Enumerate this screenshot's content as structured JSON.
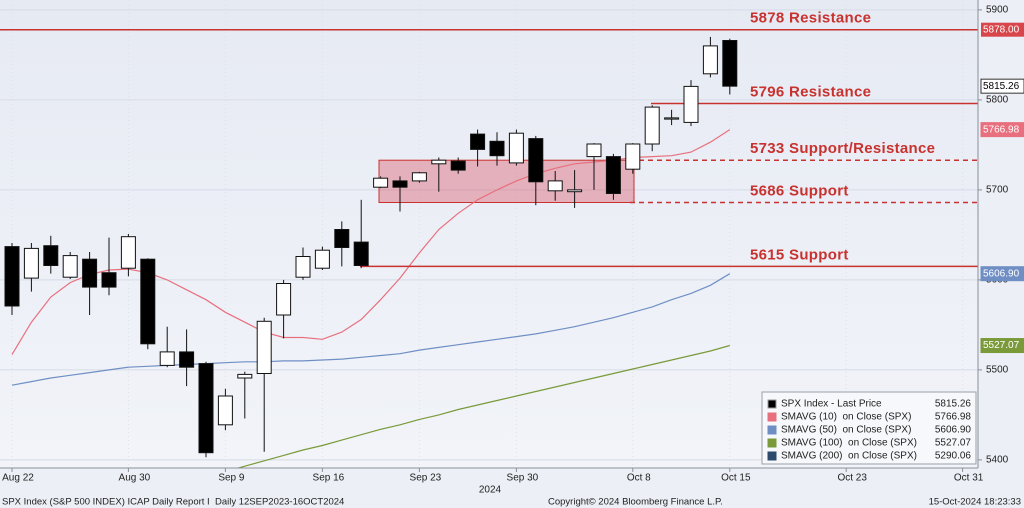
{
  "chart_data": {
    "type": "candlestick",
    "categories": [
      "Aug 22",
      null,
      null,
      null,
      null,
      null,
      "Aug 30",
      null,
      null,
      null,
      null,
      "Sep 9",
      null,
      null,
      null,
      null,
      "Sep 16",
      null,
      null,
      null,
      null,
      "Sep 23",
      null,
      null,
      null,
      null,
      "Sep 30",
      null,
      null,
      null,
      null,
      null,
      "Oct 8",
      null,
      null,
      null,
      null,
      "Oct 15",
      null,
      null,
      null,
      null,
      null,
      "Oct 23",
      null,
      null,
      null,
      null,
      null,
      "Oct 31"
    ],
    "x_sublabel": "2024",
    "ylim": [
      5391,
      5911
    ],
    "yticks": [
      5400,
      5500,
      5600,
      5700,
      5800,
      5900
    ],
    "grid": true,
    "series": [
      {
        "name": "SPX Index - Last Price",
        "color": "#000000",
        "open": [
          5637,
          5602,
          5638,
          5603,
          5623,
          5608,
          5613,
          5623,
          5505,
          5520,
          5507,
          5439,
          5491,
          5496,
          5561,
          5603,
          5613,
          5656,
          5642,
          5703,
          5710,
          5710,
          5729,
          5732,
          5762,
          5754,
          5730,
          5757,
          5699,
          5698,
          5737,
          5737,
          5723,
          5751,
          5779,
          5775,
          5829,
          5866,
          null,
          null,
          null,
          null,
          null,
          null,
          null,
          null,
          null,
          null,
          null,
          null
        ],
        "high": [
          5641,
          5641,
          5649,
          5631,
          5631,
          5647,
          5651,
          5624,
          5548,
          5545,
          5509,
          5479,
          5498,
          5558,
          5600,
          5636,
          5637,
          5665,
          5689,
          5715,
          5715,
          5720,
          5736,
          5736,
          5767,
          5764,
          5767,
          5760,
          5721,
          5722,
          5752,
          5740,
          5752,
          5794,
          5789,
          5822,
          5870,
          5868,
          null,
          null,
          null,
          null,
          null,
          null,
          null,
          null,
          null,
          null,
          null,
          null
        ],
        "low": [
          5561,
          5587,
          5607,
          5601,
          5561,
          5583,
          5604,
          5523,
          5503,
          5482,
          5403,
          5433,
          5446,
          5409,
          5535,
          5600,
          5611,
          5615,
          5613,
          5702,
          5676,
          5708,
          5698,
          5718,
          5726,
          5727,
          5727,
          5683,
          5688,
          5680,
          5700,
          5689,
          5718,
          5743,
          5772,
          5771,
          5825,
          5806,
          null,
          null,
          null,
          null,
          null,
          null,
          null,
          null,
          null,
          null,
          null,
          null
        ],
        "close": [
          5571,
          5635,
          5616,
          5627,
          5592,
          5592,
          5648,
          5529,
          5520,
          5503,
          5408,
          5471,
          5495,
          5554,
          5596,
          5626,
          5633,
          5636,
          5616,
          5713,
          5703,
          5719,
          5733,
          5722,
          5745,
          5738,
          5763,
          5709,
          5710,
          5700,
          5751,
          5696,
          5751,
          5792,
          5780,
          5815,
          5860,
          5815.26,
          null,
          null,
          null,
          null,
          null,
          null,
          null,
          null,
          null,
          null,
          null,
          null
        ]
      },
      {
        "name": "SMAVG (10)  on Close (SPX)",
        "color": "#e8707e",
        "values": [
          5517,
          5553,
          5581,
          5597,
          5606,
          5611,
          5612,
          5608,
          5600,
          5589,
          5578,
          5564,
          5553,
          5542,
          5536,
          5536,
          5534,
          5542,
          5556,
          5578,
          5602,
          5630,
          5656,
          5674,
          5689,
          5700,
          5710,
          5718,
          5724,
          5729,
          5731,
          5733,
          5736,
          5737,
          5738,
          5742,
          5753,
          5766.98,
          null,
          null,
          null,
          null,
          null,
          null,
          null,
          null,
          null,
          null,
          null,
          null
        ]
      },
      {
        "name": "SMAVG (50)  on Close (SPX)",
        "color": "#6f8fc4",
        "last_label": "5606.90",
        "values": [
          5483,
          5487,
          5491,
          5494,
          5497,
          5500,
          5503,
          5504,
          5505,
          5506,
          5507,
          5508,
          5509,
          5509,
          5510,
          5510,
          5511,
          5512,
          5514,
          5516,
          5518,
          5522,
          5525,
          5528,
          5531,
          5534,
          5537,
          5540,
          5544,
          5548,
          5553,
          5558,
          5564,
          5570,
          5578,
          5585,
          5594,
          5606.9,
          null,
          null,
          null,
          null,
          null,
          null,
          null,
          null,
          null,
          null,
          null,
          null
        ]
      },
      {
        "name": "SMAVG (100)  on Close (SPX)",
        "color": "#7a9a3a",
        "values": [
          null,
          null,
          null,
          null,
          null,
          null,
          null,
          null,
          null,
          null,
          null,
          5387,
          5393,
          5399,
          5405,
          5411,
          5416,
          5422,
          5428,
          5434,
          5439,
          5445,
          5450,
          5456,
          5461,
          5466,
          5471,
          5476,
          5481,
          5486,
          5491,
          5496,
          5501,
          5506,
          5511,
          5516,
          5521,
          5527.07,
          null,
          null,
          null,
          null,
          null,
          null,
          null,
          null,
          null,
          null,
          null,
          null
        ]
      },
      {
        "name": "SMAVG (200)  on Close (SPX)",
        "color": "#2c4a6e",
        "last_value": 5290.06
      }
    ],
    "levels": [
      {
        "value": 5878,
        "label": "5878 Resistance",
        "axis_label": "5878.00",
        "style": "solid"
      },
      {
        "value": 5796,
        "label": "5796 Resistance",
        "style": "solid"
      },
      {
        "value": 5733,
        "label": "5733 Support/Resistance",
        "style": "dashed"
      },
      {
        "value": 5686,
        "label": "5686 Support",
        "style": "dashed"
      },
      {
        "value": 5615,
        "label": "5615 Support",
        "style": "solid"
      }
    ],
    "footer": {
      "left": "SPX Index (S&P 500 INDEX) ICAP Daily Report I  Daily 12SEP2023-16OCT2024",
      "center": "Copyright© 2024 Bloomberg Finance L.P.",
      "right": "15-Oct-2024 18:23:33"
    }
  }
}
